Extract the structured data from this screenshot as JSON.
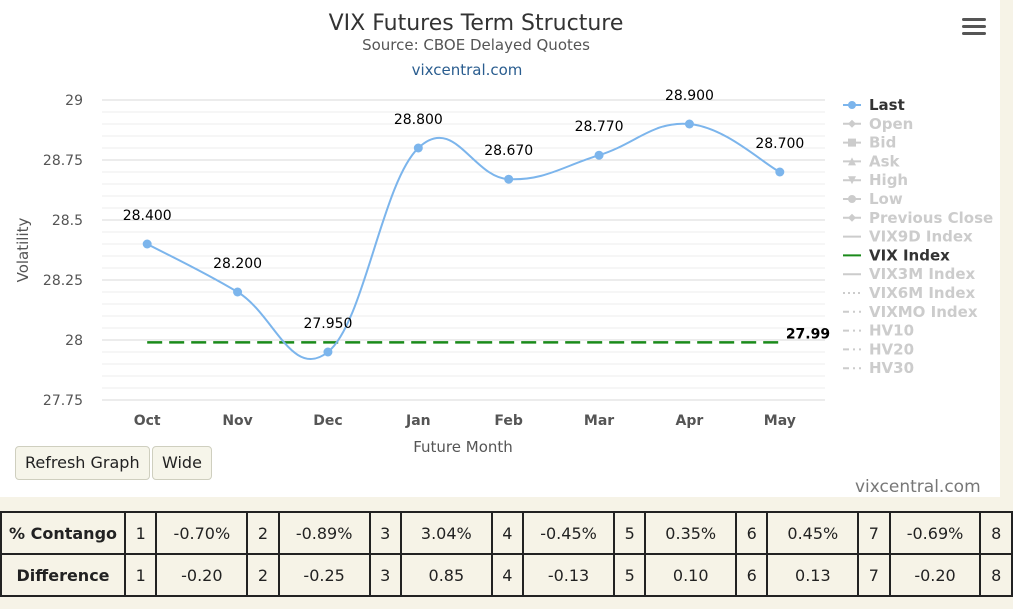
{
  "chart_data": {
    "type": "line",
    "title": "VIX Futures Term Structure",
    "subtitle": "Source: CBOE Delayed Quotes",
    "credit": "vixcentral.com",
    "xlabel": "Future Month",
    "ylabel": "Volatility",
    "categories": [
      "Oct",
      "Nov",
      "Dec",
      "Jan",
      "Feb",
      "Mar",
      "Apr",
      "May"
    ],
    "ylim": [
      27.75,
      29
    ],
    "yticks": [
      "29",
      "28.75",
      "28.5",
      "28.25",
      "28",
      "27.75"
    ],
    "grid": true,
    "legend_position": "right",
    "series": [
      {
        "name": "Last",
        "values": [
          28.4,
          28.2,
          27.95,
          28.8,
          28.67,
          28.77,
          28.9,
          28.7
        ],
        "labels": [
          "28.400",
          "28.200",
          "27.950",
          "28.800",
          "28.670",
          "28.770",
          "28.900",
          "28.700"
        ],
        "color": "#7cb5ec"
      },
      {
        "name": "VIX Index",
        "value": 27.99,
        "label": "27.99",
        "color": "#1a8a1a",
        "style": "dashed"
      }
    ],
    "legend": [
      {
        "label": "Last",
        "active": true,
        "symbol": "circle-line",
        "color": "#7cb5ec"
      },
      {
        "label": "Open",
        "active": false,
        "symbol": "diamond-line"
      },
      {
        "label": "Bid",
        "active": false,
        "symbol": "square-line"
      },
      {
        "label": "Ask",
        "active": false,
        "symbol": "triangle-line"
      },
      {
        "label": "High",
        "active": false,
        "symbol": "triangle-down-line"
      },
      {
        "label": "Low",
        "active": false,
        "symbol": "circle-line"
      },
      {
        "label": "Previous Close",
        "active": false,
        "symbol": "diamond-line"
      },
      {
        "label": "VIX9D Index",
        "active": false,
        "symbol": "line"
      },
      {
        "label": "VIX Index",
        "active": true,
        "symbol": "line",
        "color": "#1a8a1a"
      },
      {
        "label": "VIX3M Index",
        "active": false,
        "symbol": "line"
      },
      {
        "label": "VIX6M Index",
        "active": false,
        "symbol": "dotted"
      },
      {
        "label": "VIXMO Index",
        "active": false,
        "symbol": "dashdot"
      },
      {
        "label": "HV10",
        "active": false,
        "symbol": "dashdot"
      },
      {
        "label": "HV20",
        "active": false,
        "symbol": "dashdot"
      },
      {
        "label": "HV30",
        "active": false,
        "symbol": "dashdot"
      }
    ]
  },
  "buttons": {
    "refresh": "Refresh Graph",
    "wide": "Wide"
  },
  "footer_credit": "vixcentral.com",
  "table": {
    "rows": [
      {
        "label": "% Contango",
        "cells": [
          "1",
          "-0.70%",
          "2",
          "-0.89%",
          "3",
          "3.04%",
          "4",
          "-0.45%",
          "5",
          "0.35%",
          "6",
          "0.45%",
          "7",
          "-0.69%",
          "8"
        ]
      },
      {
        "label": "Difference",
        "cells": [
          "1",
          "-0.20",
          "2",
          "-0.25",
          "3",
          "0.85",
          "4",
          "-0.13",
          "5",
          "0.10",
          "6",
          "0.13",
          "7",
          "-0.20",
          "8"
        ]
      }
    ]
  }
}
